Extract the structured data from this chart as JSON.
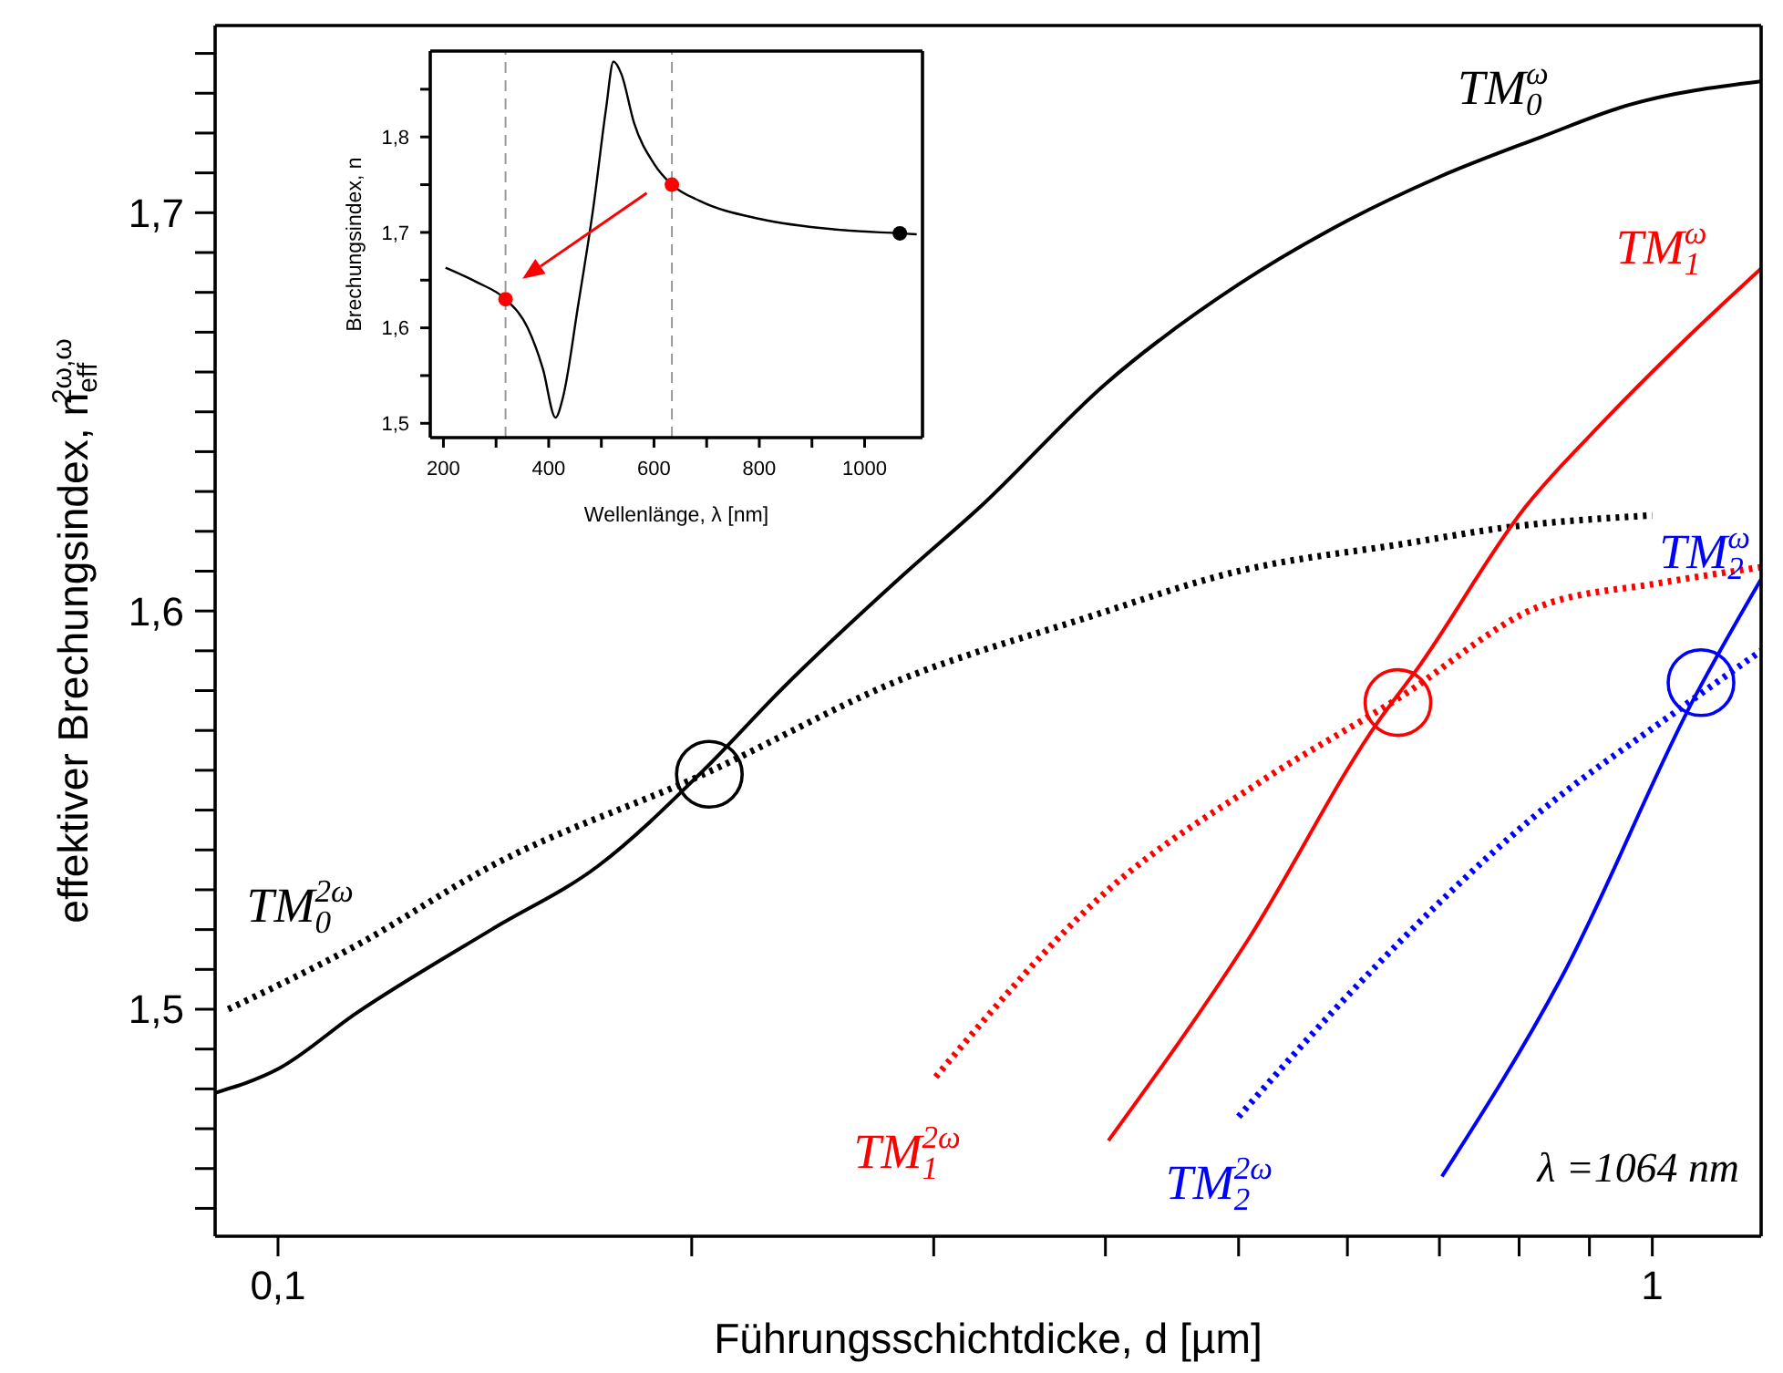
{
  "chart_data": [
    {
      "type": "line",
      "xlabel": "Führungsschichtdicke, d [µm]",
      "ylabel": "effektiver Brechungsindex, n$_{eff}$$^{2ω,ω}$",
      "log": "x",
      "legend": false,
      "grid": false,
      "xlim": [
        0.09,
        1.2
      ],
      "ylim": [
        1.443,
        1.747
      ],
      "xticks": [
        {
          "value": 0.1,
          "label": "0,1"
        },
        {
          "value": 0.2,
          "label": null
        },
        {
          "value": 0.3,
          "label": null
        },
        {
          "value": 0.4,
          "label": null
        },
        {
          "value": 0.5,
          "label": null
        },
        {
          "value": 0.6,
          "label": null
        },
        {
          "value": 0.7,
          "label": null
        },
        {
          "value": 0.8,
          "label": null
        },
        {
          "value": 0.9,
          "label": null
        },
        1
      ],
      "yticks": [
        {
          "value": 1.45,
          "label": null
        },
        {
          "value": 1.46,
          "label": null
        },
        {
          "value": 1.47,
          "label": null
        },
        {
          "value": 1.48,
          "label": null
        },
        {
          "value": 1.49,
          "label": null
        },
        {
          "value": 1.5,
          "label": "1,5"
        },
        {
          "value": 1.51,
          "label": null
        },
        {
          "value": 1.52,
          "label": null
        },
        {
          "value": 1.53,
          "label": null
        },
        {
          "value": 1.54,
          "label": null
        },
        {
          "value": 1.55,
          "label": null
        },
        {
          "value": 1.56,
          "label": null
        },
        {
          "value": 1.57,
          "label": null
        },
        {
          "value": 1.58,
          "label": null
        },
        {
          "value": 1.59,
          "label": null
        },
        {
          "value": 1.6,
          "label": "1,6"
        },
        {
          "value": 1.61,
          "label": null
        },
        {
          "value": 1.62,
          "label": null
        },
        {
          "value": 1.63,
          "label": null
        },
        {
          "value": 1.64,
          "label": null
        },
        {
          "value": 1.65,
          "label": null
        },
        {
          "value": 1.66,
          "label": null
        },
        {
          "value": 1.67,
          "label": null
        },
        {
          "value": 1.68,
          "label": null
        },
        {
          "value": 1.69,
          "label": null
        },
        {
          "value": 1.7,
          "label": "1,7"
        },
        {
          "value": 1.71,
          "label": null
        },
        {
          "value": 1.72,
          "label": null
        },
        {
          "value": 1.73,
          "label": null
        },
        {
          "value": 1.74,
          "label": null
        }
      ],
      "annotations": [
        "λ =1064 nm"
      ],
      "series": [
        {
          "name": "TM$_{0}$$^{ω}$",
          "type": "line",
          "line_style": "solid",
          "color": "#000000",
          "x": [
            0.09,
            0.1,
            0.114,
            0.143,
            0.171,
            0.204,
            0.232,
            0.285,
            0.324,
            0.4,
            0.5,
            0.6,
            0.7,
            0.83,
            0.96,
            1.2
          ],
          "values": [
            1.479,
            1.485,
            1.499,
            1.52,
            1.536,
            1.56,
            1.58,
            1.609,
            1.626,
            1.657,
            1.682,
            1.698,
            1.709,
            1.719,
            1.727,
            1.733
          ]
        },
        {
          "name": "TM$_{0}$$^{2ω}$",
          "type": "line",
          "line_style": "dotted",
          "color": "#000000",
          "x": [
            0.092,
            0.114,
            0.143,
            0.204,
            0.285,
            0.385,
            0.5,
            0.663,
            0.784,
            1.0
          ],
          "values": [
            1.5,
            1.516,
            1.536,
            1.559,
            1.583,
            1.598,
            1.61,
            1.617,
            1.621,
            1.624
          ]
        },
        {
          "name": "TM$_{1}$$^{ω}$",
          "type": "line",
          "line_style": "solid",
          "color": "#ff0000",
          "x": [
            0.402,
            0.507,
            0.634,
            0.673,
            0.808,
            0.924,
            1.063,
            1.2
          ],
          "values": [
            1.467,
            1.517,
            1.573,
            1.585,
            1.626,
            1.648,
            1.669,
            1.686
          ]
        },
        {
          "name": "TM$_{1}$$^{2ω}$",
          "type": "line",
          "line_style": "dotted",
          "color": "#ff0000",
          "x": [
            0.301,
            0.402,
            0.518,
            0.653,
            0.826,
            1.012,
            1.2
          ],
          "values": [
            1.483,
            1.53,
            1.557,
            1.578,
            1.601,
            1.607,
            1.611
          ]
        },
        {
          "name": "TM$_{2}$$^{ω}$",
          "type": "line",
          "line_style": "solid",
          "color": "#0000ff",
          "x": [
            0.703,
            0.859,
            1.076,
            1.2
          ],
          "values": [
            1.458,
            1.508,
            1.579,
            1.608
          ]
        },
        {
          "name": "TM$_{2}$$^{2ω}$",
          "type": "line",
          "line_style": "dotted",
          "color": "#0000ff",
          "x": [
            0.5,
            0.622,
            0.818,
            1.043,
            1.2
          ],
          "values": [
            1.473,
            1.509,
            1.548,
            1.575,
            1.59
          ]
        },
        {
          "type": "scatter",
          "marker": "circle",
          "x": [
            0.206,
            0.653,
            1.085
          ],
          "values": [
            1.559,
            1.577,
            1.582
          ],
          "colors": [
            "#000000",
            "#ff0000",
            "#0000ff"
          ]
        }
      ]
    },
    {
      "type": "line",
      "xlabel": "Wellenlänge, λ [nm]",
      "ylabel": "Brechungsindex, n",
      "legend": false,
      "grid": false,
      "xlim": [
        175,
        1110
      ],
      "ylim": [
        1.485,
        1.89
      ],
      "xticks": [
        200,
        {
          "value": 300,
          "label": null
        },
        400,
        {
          "value": 500,
          "label": null
        },
        600,
        {
          "value": 700,
          "label": null
        },
        800,
        {
          "value": 900,
          "label": null
        },
        1000
      ],
      "yticks": [
        {
          "value": 1.5,
          "label": "1,5"
        },
        {
          "value": 1.55,
          "label": null
        },
        {
          "value": 1.6,
          "label": "1,6"
        },
        {
          "value": 1.65,
          "label": null
        },
        {
          "value": 1.7,
          "label": "1,7"
        },
        {
          "value": 1.75,
          "label": null
        },
        {
          "value": 1.8,
          "label": "1,8"
        },
        {
          "value": 1.85,
          "label": null
        }
      ],
      "ref_lines": [
        {
          "axis": "x",
          "value": 318,
          "color": "#999999",
          "line_style": "dashed"
        },
        {
          "axis": "x",
          "value": 634,
          "color": "#999999",
          "line_style": "dashed"
        }
      ],
      "series": [
        {
          "type": "line",
          "line_style": "solid",
          "color": "#000000",
          "x": [
            204,
            263,
            318,
            360,
            389,
            413,
            427,
            456,
            485,
            509,
            523,
            538,
            562,
            600,
            634,
            687,
            802,
            946,
            1067,
            1099
          ],
          "values": [
            1.663,
            1.648,
            1.63,
            1.6,
            1.557,
            1.506,
            1.527,
            1.624,
            1.727,
            1.83,
            1.879,
            1.866,
            1.815,
            1.772,
            1.75,
            1.733,
            1.714,
            1.703,
            1.699,
            1.698
          ]
        },
        {
          "type": "scatter",
          "marker": "circle",
          "x": [
            318,
            634,
            1067
          ],
          "values": [
            1.63,
            1.75,
            1.699
          ],
          "colors": [
            "#ff0000",
            "#ff0000",
            "#000000"
          ]
        }
      ]
    }
  ]
}
